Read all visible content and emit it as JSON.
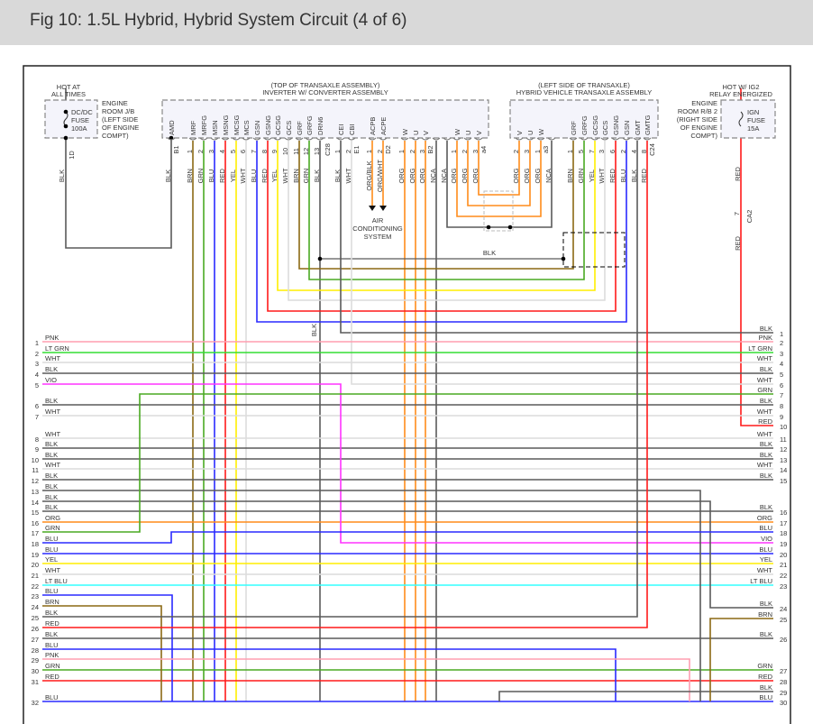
{
  "title": "Fig 10: 1.5L Hybrid, Hybrid System Circuit (4 of 6)",
  "wire_colors": {
    "BLK": "#5a5a5a",
    "PNK": "#ff9db0",
    "LT GRN": "#33dd33",
    "WHT": "#dcdcdc",
    "VIO": "#ff33ff",
    "GRN": "#4aaa22",
    "ORG": "#ff8c1a",
    "BLU": "#2a2aff",
    "YEL": "#ffee00",
    "LT BLU": "#33ffff",
    "BRN": "#8b6914",
    "RED": "#ff1a1a",
    "ORG/BLK": "#ff8c1a",
    "ORG/WHT": "#ff8c1a"
  },
  "left_power": {
    "hot": [
      "HOT AT",
      "ALL TIMES"
    ],
    "fuse": [
      "DC/DC",
      "FUSE",
      "100A"
    ],
    "location": [
      "ENGINE",
      "ROOM J/B",
      "(LEFT SIDE",
      "OF ENGINE",
      "COMPT)"
    ],
    "pin": "1D",
    "wire": "BLK"
  },
  "right_power": {
    "hot": [
      "HOT W/ IG2",
      "RELAY ENERGIZED"
    ],
    "fuse": [
      "IGN",
      "FUSE",
      "15A"
    ],
    "location": [
      "ENGINE",
      "ROOM R/B 2",
      "(RIGHT SIDE",
      "OF ENGINE",
      "COMPT)"
    ],
    "wire": "RED",
    "connector_pin": "7",
    "connector": "CA2",
    "wire2": "RED"
  },
  "inverter": {
    "location": "(TOP OF TRANSAXLE ASSEMBLY)",
    "name": "INVERTER W/ CONVERTER ASSEMBLY",
    "pins": [
      {
        "name": "AMD",
        "num": "",
        "wire": "BLK"
      },
      {
        "name": "MRF",
        "num": "1",
        "wire": "BRN"
      },
      {
        "name": "MRFG",
        "num": "2",
        "wire": "GRN"
      },
      {
        "name": "MSN",
        "num": "3",
        "wire": "BLU"
      },
      {
        "name": "MSNG",
        "num": "4",
        "wire": "RED"
      },
      {
        "name": "MCSG",
        "num": "5",
        "wire": "YEL"
      },
      {
        "name": "MCS",
        "num": "6",
        "wire": "WHT"
      },
      {
        "name": "GSN",
        "num": "7",
        "wire": "BLU"
      },
      {
        "name": "GSNG",
        "num": "8",
        "wire": "RED"
      },
      {
        "name": "GCSG",
        "num": "9",
        "wire": "YEL"
      },
      {
        "name": "GCS",
        "num": "10",
        "wire": "WHT"
      },
      {
        "name": "GRF",
        "num": "11",
        "wire": "BRN"
      },
      {
        "name": "GRFG",
        "num": "12",
        "wire": "GRN"
      },
      {
        "name": "DRN6",
        "num": "13",
        "wire": "BLK"
      },
      {
        "name": "CEI",
        "num": "1",
        "wire": "BLK"
      },
      {
        "name": "CBI",
        "num": "2",
        "wire": "WHT"
      },
      {
        "name": "ACPB",
        "num": "1",
        "wire": "ORG/BLK"
      },
      {
        "name": "ACPE",
        "num": "2",
        "wire": "ORG/WHT"
      },
      {
        "name": "W",
        "num": "1",
        "wire": "ORG"
      },
      {
        "name": "U",
        "num": "2",
        "wire": "ORG"
      },
      {
        "name": "V",
        "num": "3",
        "wire": "ORG"
      },
      {
        "name": "",
        "num": "",
        "wire": "NCA"
      },
      {
        "name": "",
        "num": "",
        "wire": "NCA"
      },
      {
        "name": "W",
        "num": "1",
        "wire": "ORG"
      },
      {
        "name": "U",
        "num": "2",
        "wire": "ORG"
      },
      {
        "name": "V",
        "num": "3",
        "wire": "ORG"
      }
    ],
    "connectors": [
      "B1",
      "C28",
      "E1",
      "D2",
      "B2",
      "a4"
    ]
  },
  "transaxle": {
    "location": "(LEFT SIDE OF TRANSAXLE)",
    "name": "HYBRID VEHICLE TRANSAXLE ASSEMBLY",
    "pins": [
      {
        "name": "V",
        "num": "2",
        "wire": "ORG"
      },
      {
        "name": "U",
        "num": "3",
        "wire": "ORG"
      },
      {
        "name": "W",
        "num": "1",
        "wire": "ORG"
      },
      {
        "name": "",
        "num": "",
        "wire": "NCA"
      },
      {
        "name": "GRF",
        "num": "1",
        "wire": "BRN"
      },
      {
        "name": "GRFG",
        "num": "5",
        "wire": "GRN"
      },
      {
        "name": "GCSG",
        "num": "7",
        "wire": "YEL"
      },
      {
        "name": "GCS",
        "num": "3",
        "wire": "WHT"
      },
      {
        "name": "GSNG",
        "num": "6",
        "wire": "RED"
      },
      {
        "name": "GSN",
        "num": "2",
        "wire": "BLU"
      },
      {
        "name": "GMT",
        "num": "4",
        "wire": "BLK"
      },
      {
        "name": "GMTG",
        "num": "8",
        "wire": "RED"
      }
    ],
    "connectors": [
      "a3",
      "C24"
    ]
  },
  "ac_system": [
    "AIR",
    "CONDITIONING",
    "SYSTEM"
  ],
  "shield_wire_label": "BLK",
  "drain_wire_label": "BLK",
  "left_rows": [
    {
      "num": "1",
      "color": "PNK"
    },
    {
      "num": "2",
      "color": "LT GRN"
    },
    {
      "num": "3",
      "color": "WHT"
    },
    {
      "num": "4",
      "color": "BLK"
    },
    {
      "num": "5",
      "color": "VIO"
    },
    {
      "num": "6",
      "color": "BLK"
    },
    {
      "num": "7",
      "color": "WHT"
    },
    {
      "num": "8",
      "color": "WHT"
    },
    {
      "num": "9",
      "color": "BLK"
    },
    {
      "num": "10",
      "color": "BLK"
    },
    {
      "num": "11",
      "color": "WHT"
    },
    {
      "num": "12",
      "color": "BLK"
    },
    {
      "num": "13",
      "color": "BLK"
    },
    {
      "num": "14",
      "color": "BLK"
    },
    {
      "num": "15",
      "color": "BLK"
    },
    {
      "num": "16",
      "color": "ORG"
    },
    {
      "num": "17",
      "color": "GRN"
    },
    {
      "num": "18",
      "color": "BLU"
    },
    {
      "num": "19",
      "color": "BLU"
    },
    {
      "num": "20",
      "color": "YEL"
    },
    {
      "num": "21",
      "color": "WHT"
    },
    {
      "num": "22",
      "color": "LT BLU"
    },
    {
      "num": "23",
      "color": "BLU"
    },
    {
      "num": "24",
      "color": "BRN"
    },
    {
      "num": "25",
      "color": "BLK"
    },
    {
      "num": "26",
      "color": "RED"
    },
    {
      "num": "27",
      "color": "BLK"
    },
    {
      "num": "28",
      "color": "BLU"
    },
    {
      "num": "29",
      "color": "PNK"
    },
    {
      "num": "30",
      "color": "GRN"
    },
    {
      "num": "31",
      "color": "RED"
    },
    {
      "num": "32",
      "color": "BLU"
    }
  ],
  "right_rows": [
    {
      "num": "1",
      "color": "BLK"
    },
    {
      "num": "2",
      "color": "PNK"
    },
    {
      "num": "3",
      "color": "LT GRN"
    },
    {
      "num": "4",
      "color": "WHT"
    },
    {
      "num": "5",
      "color": "BLK"
    },
    {
      "num": "6",
      "color": "WHT"
    },
    {
      "num": "7",
      "color": "GRN"
    },
    {
      "num": "8",
      "color": "BLK"
    },
    {
      "num": "9",
      "color": "WHT"
    },
    {
      "num": "10",
      "color": "RED"
    },
    {
      "num": "11",
      "color": "WHT"
    },
    {
      "num": "12",
      "color": "BLK"
    },
    {
      "num": "13",
      "color": "BLK"
    },
    {
      "num": "14",
      "color": "WHT"
    },
    {
      "num": "15",
      "color": "BLK"
    },
    {
      "num": "16",
      "color": "BLK"
    },
    {
      "num": "17",
      "color": "ORG"
    },
    {
      "num": "18",
      "color": "BLU"
    },
    {
      "num": "19",
      "color": "VIO"
    },
    {
      "num": "20",
      "color": "BLU"
    },
    {
      "num": "21",
      "color": "YEL"
    },
    {
      "num": "22",
      "color": "WHT"
    },
    {
      "num": "23",
      "color": "LT BLU"
    },
    {
      "num": "24",
      "color": "BLK"
    },
    {
      "num": "25",
      "color": "BRN"
    },
    {
      "num": "26",
      "color": "BLK"
    },
    {
      "num": "27",
      "color": "GRN"
    },
    {
      "num": "28",
      "color": "RED"
    },
    {
      "num": "29",
      "color": "BLK"
    },
    {
      "num": "30",
      "color": "BLU"
    }
  ]
}
